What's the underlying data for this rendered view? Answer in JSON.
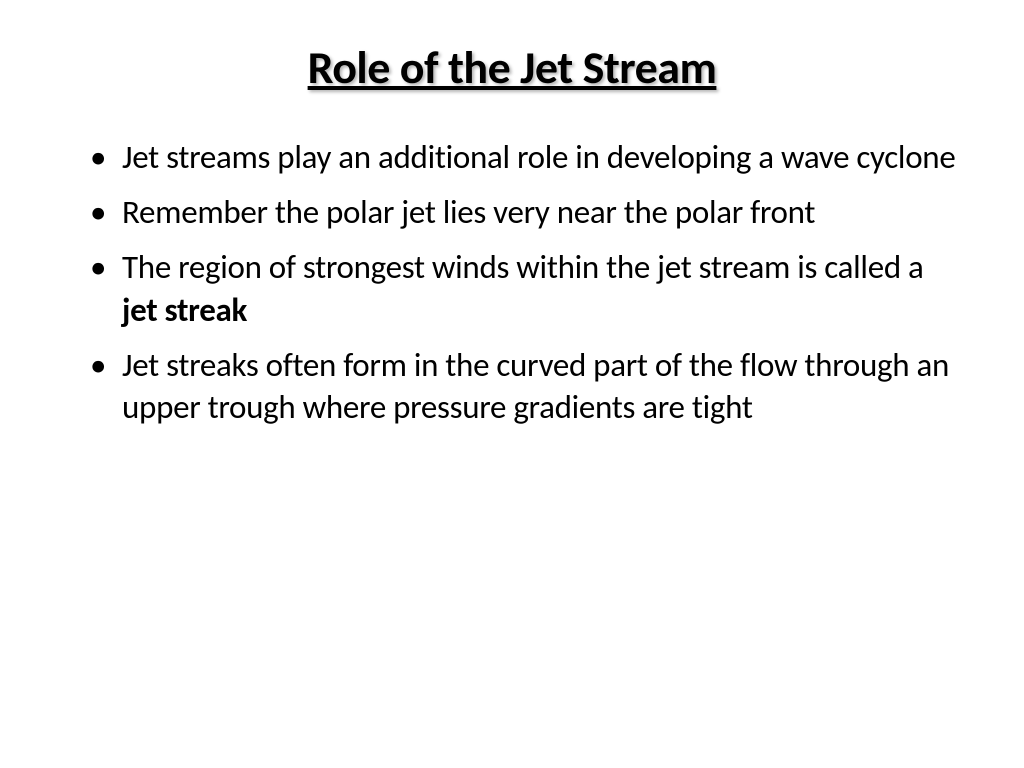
{
  "slide": {
    "title": "Role of the Jet Stream",
    "bullets": [
      {
        "text": "Jet streams play an additional role in developing a wave cyclone",
        "bold_term": null
      },
      {
        "text": "Remember the polar jet lies very near the polar front",
        "bold_term": null
      },
      {
        "text_before": "The region of strongest winds within the jet stream is called a ",
        "bold_term": "jet streak",
        "text_after": ""
      },
      {
        "text": "Jet streaks often form in the curved part of the flow through an upper trough where pressure gradients are tight",
        "bold_term": null
      }
    ],
    "styling": {
      "background_color": "#ffffff",
      "text_color": "#000000",
      "title_fontsize": 46,
      "title_weight": "bold",
      "title_decoration": "underline",
      "title_shadow": "2px 2px 3px rgba(0,0,0,0.3)",
      "body_fontsize": 33,
      "font_family": "Calibri",
      "bullet_char": "•"
    }
  }
}
